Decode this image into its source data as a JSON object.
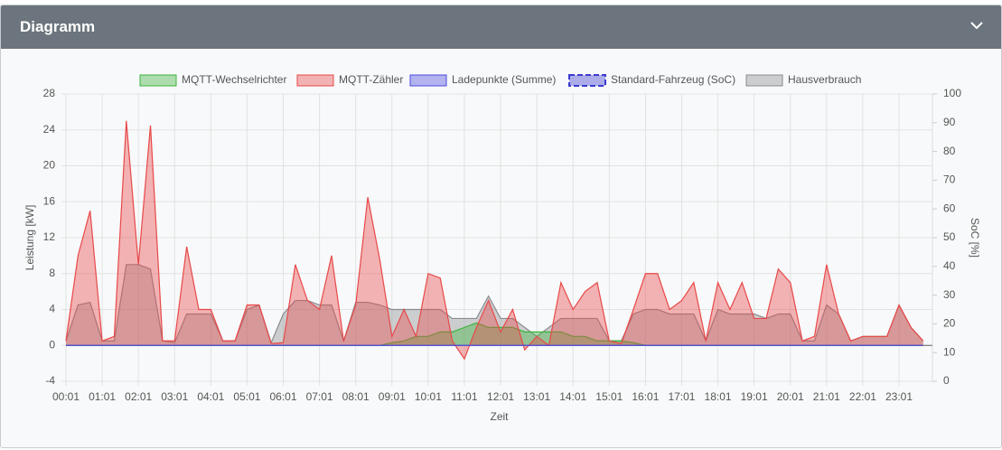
{
  "header": {
    "title": "Diagramm"
  },
  "chart_data": {
    "type": "area",
    "xlabel": "Zeit",
    "ylabel": "Leistung [kW]",
    "y2label": "SoC [%]",
    "categories": [
      "00:01",
      null,
      null,
      "01:01",
      null,
      null,
      "02:01",
      null,
      null,
      "03:01",
      null,
      null,
      "04:01",
      null,
      null,
      "05:01",
      null,
      null,
      "06:01",
      null,
      null,
      "07:01",
      null,
      null,
      "08:01",
      null,
      null,
      "09:01",
      null,
      null,
      "10:01",
      null,
      null,
      "11:01",
      null,
      null,
      "12:01",
      null,
      null,
      "13:01",
      null,
      null,
      "14:01",
      null,
      null,
      "15:01",
      null,
      null,
      "16:01",
      null,
      null,
      "17:01",
      null,
      null,
      "18:01",
      null,
      null,
      "19:01",
      null,
      null,
      "20:01",
      null,
      null,
      "21:01",
      null,
      null,
      "22:01",
      null,
      null,
      "23:01",
      null,
      null
    ],
    "ylim": [
      -4,
      28
    ],
    "yticks": [
      -4,
      0,
      4,
      8,
      12,
      16,
      20,
      24,
      28
    ],
    "y2lim": [
      0,
      100
    ],
    "y2ticks": [
      0,
      10,
      20,
      30,
      40,
      50,
      60,
      70,
      80,
      90,
      100
    ],
    "grid": true,
    "series": [
      {
        "name": "MQTT-Wechselrichter",
        "color": "#3cb43c",
        "values": [
          0,
          0,
          0,
          0,
          0,
          0,
          0,
          0,
          0,
          0,
          0,
          0,
          0,
          0,
          0,
          0,
          0,
          0,
          0,
          0,
          0,
          0,
          0,
          0,
          0,
          0,
          0,
          0.3,
          0.5,
          1,
          1,
          1.5,
          1.5,
          2,
          2.5,
          2,
          2,
          2,
          1.5,
          1.5,
          1.5,
          1.5,
          1,
          1,
          0.5,
          0.5,
          0.5,
          0.3,
          0,
          0,
          0,
          0,
          0,
          0,
          0,
          0,
          0,
          0,
          0,
          0,
          0,
          0,
          0,
          0,
          0,
          0,
          0,
          0,
          0,
          0,
          0,
          0
        ]
      },
      {
        "name": "MQTT-Zähler",
        "color": "#e84848",
        "values": [
          0.5,
          10,
          15,
          0.5,
          1,
          25,
          9,
          24.5,
          0.5,
          0.5,
          11,
          4,
          4,
          0.5,
          0.5,
          4.5,
          4.5,
          0.2,
          0.3,
          9,
          5,
          4,
          10,
          0.5,
          4.5,
          16.5,
          9.5,
          1,
          4,
          1,
          8,
          7.5,
          0.5,
          -1.5,
          2,
          5,
          1.5,
          4,
          -0.5,
          1,
          0,
          7,
          4,
          6,
          7,
          0.5,
          0.2,
          4,
          8,
          8,
          4,
          5,
          7,
          0.5,
          7,
          4,
          7,
          3,
          3,
          8.5,
          7,
          0.5,
          1,
          9,
          3.5,
          0.5,
          1,
          1,
          1,
          4.5,
          2,
          0.5
        ]
      },
      {
        "name": "Ladepunkte (Summe)",
        "color": "#4a4ae0",
        "values": [
          0,
          0,
          0,
          0,
          0,
          0,
          0,
          0,
          0,
          0,
          0,
          0,
          0,
          0,
          0,
          0,
          0,
          0,
          0,
          0,
          0,
          0,
          0,
          0,
          0,
          0,
          0,
          0,
          0,
          0,
          0,
          0,
          0,
          0,
          0,
          0,
          0,
          0,
          0,
          0,
          0,
          0,
          0,
          0,
          0,
          0,
          0,
          0,
          0,
          0,
          0,
          0,
          0,
          0,
          0,
          0,
          0,
          0,
          0,
          0,
          0,
          0,
          0,
          0,
          0,
          0,
          0,
          0,
          0,
          0,
          0,
          0
        ]
      },
      {
        "name": "Standard-Fahrzeug (SoC)",
        "color": "#3a3ad0",
        "dashed": true,
        "axis": "y2",
        "values": [
          null,
          null,
          null,
          null,
          null,
          null,
          null,
          null,
          null,
          null,
          null,
          null,
          null,
          null,
          null,
          null,
          null,
          null,
          null,
          null,
          null,
          null,
          null,
          null,
          null,
          null,
          null,
          null,
          null,
          null,
          null,
          null,
          null,
          null,
          null,
          null,
          null,
          null,
          null,
          null,
          null,
          null,
          null,
          null,
          null,
          null,
          null,
          null,
          null,
          null,
          null,
          null,
          null,
          null,
          null,
          null,
          null,
          null,
          null,
          null,
          null,
          null,
          null,
          null,
          null,
          null,
          null,
          null,
          null,
          null,
          null,
          null
        ]
      },
      {
        "name": "Hausverbrauch",
        "color": "#8a8c8f",
        "values": [
          0.5,
          4.5,
          4.8,
          0.5,
          0.5,
          9,
          9,
          8.5,
          0.5,
          0.3,
          3.5,
          3.5,
          3.5,
          0.5,
          0.5,
          4,
          4.5,
          0.3,
          3.5,
          5,
          5,
          4.5,
          4.5,
          0.5,
          4.8,
          4.8,
          4.5,
          4,
          4,
          4,
          4,
          4,
          3,
          3,
          3,
          5.5,
          3,
          3,
          2,
          1,
          2,
          3,
          3,
          3,
          3,
          0.5,
          0.5,
          3.5,
          4,
          4,
          3.5,
          3.5,
          3.5,
          0.5,
          4,
          3.5,
          3.5,
          3.5,
          3,
          3.5,
          3.5,
          0.5,
          0.5,
          4.5,
          3.5,
          0.5,
          1,
          1,
          1,
          4.5,
          2,
          0.5
        ]
      }
    ]
  }
}
